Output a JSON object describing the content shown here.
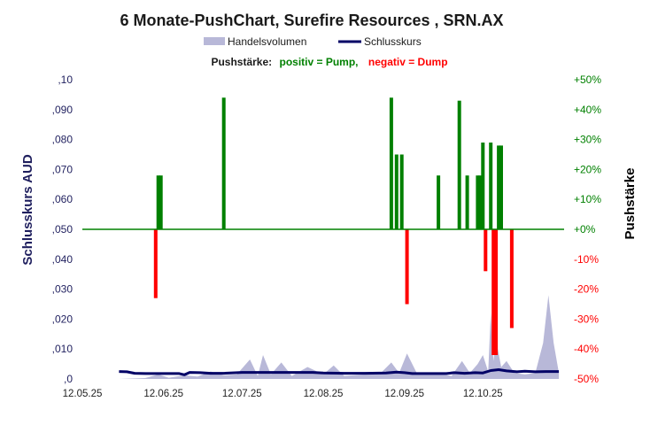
{
  "chart_data": {
    "type": "bar",
    "title": "6 Monate-PushChart,  Surefire Resources , SRN.AX",
    "subtitle": {
      "prefix": "Pushstärke:",
      "positive": "positiv = Pump,",
      "negative": "negativ = Dump"
    },
    "legend": [
      {
        "name": "Handelsvolumen",
        "kind": "area"
      },
      {
        "name": "Schlusskurs",
        "kind": "line"
      }
    ],
    "legend_placement": "top-center",
    "ylabel_left": "Schlusskurs AUD",
    "ylabel_right": "Pushstärke",
    "ylim_left": [
      0,
      0.1
    ],
    "ylim_right": [
      -50,
      50
    ],
    "x_range": [
      "2025-05-12",
      "2025-11-12"
    ],
    "left_ticks": [
      ",0",
      ",010",
      ",020",
      ",030",
      ",040",
      ",050",
      ",060",
      ",070",
      ",080",
      ",090",
      ",10"
    ],
    "left_tick_values": [
      0,
      0.01,
      0.02,
      0.03,
      0.04,
      0.05,
      0.06,
      0.07,
      0.08,
      0.09,
      0.1
    ],
    "right_ticks": [
      "-50%",
      "-40%",
      "-30%",
      "-20%",
      "-10%",
      "+0%",
      "+10%",
      "+20%",
      "+30%",
      "+40%",
      "+50%"
    ],
    "right_tick_values": [
      -50,
      -40,
      -30,
      -20,
      -10,
      0,
      10,
      20,
      30,
      40,
      50
    ],
    "x_ticks": [
      "12.05.25",
      "12.06.25",
      "12.07.25",
      "12.08.25",
      "12.09.25",
      "12.10.25"
    ],
    "x_tick_dates": [
      "2025-05-12",
      "2025-06-12",
      "2025-07-12",
      "2025-08-12",
      "2025-09-12",
      "2025-10-12"
    ],
    "grid": false,
    "colors": {
      "pump": "#008000",
      "dump": "#ff0000",
      "price": "#000066",
      "volume": "#b8b8d8",
      "zero_line": "#008000",
      "left_axis": "#1f1f5e",
      "right_axis_title": "#000000"
    },
    "push_series": {
      "name": "Pushstärke",
      "points": [
        {
          "date": "2025-06-09",
          "value": -23
        },
        {
          "date": "2025-06-10",
          "value": 18
        },
        {
          "date": "2025-06-11",
          "value": 18
        },
        {
          "date": "2025-07-05",
          "value": 44
        },
        {
          "date": "2025-09-07",
          "value": 44
        },
        {
          "date": "2025-09-09",
          "value": 25
        },
        {
          "date": "2025-09-11",
          "value": 25
        },
        {
          "date": "2025-09-13",
          "value": -25
        },
        {
          "date": "2025-09-25",
          "value": 18
        },
        {
          "date": "2025-10-03",
          "value": 43
        },
        {
          "date": "2025-10-06",
          "value": 18
        },
        {
          "date": "2025-10-10",
          "value": 18
        },
        {
          "date": "2025-10-11",
          "value": 18
        },
        {
          "date": "2025-10-12",
          "value": 29
        },
        {
          "date": "2025-10-13",
          "value": -14
        },
        {
          "date": "2025-10-15",
          "value": 29
        },
        {
          "date": "2025-10-16",
          "value": -42
        },
        {
          "date": "2025-10-17",
          "value": -42
        },
        {
          "date": "2025-10-18",
          "value": 28
        },
        {
          "date": "2025-10-19",
          "value": 28
        },
        {
          "date": "2025-10-23",
          "value": -33
        }
      ]
    },
    "price_series": {
      "name": "Schlusskurs",
      "points": [
        {
          "date": "2025-05-26",
          "value": 0.0025
        },
        {
          "date": "2025-05-29",
          "value": 0.0024
        },
        {
          "date": "2025-06-01",
          "value": 0.0019
        },
        {
          "date": "2025-06-05",
          "value": 0.0018
        },
        {
          "date": "2025-06-12",
          "value": 0.0018
        },
        {
          "date": "2025-06-18",
          "value": 0.0018
        },
        {
          "date": "2025-06-20",
          "value": 0.0014
        },
        {
          "date": "2025-06-22",
          "value": 0.0022
        },
        {
          "date": "2025-06-26",
          "value": 0.0021
        },
        {
          "date": "2025-06-30",
          "value": 0.0019
        },
        {
          "date": "2025-07-05",
          "value": 0.0019
        },
        {
          "date": "2025-07-12",
          "value": 0.0022
        },
        {
          "date": "2025-07-20",
          "value": 0.0022
        },
        {
          "date": "2025-08-01",
          "value": 0.0022
        },
        {
          "date": "2025-08-08",
          "value": 0.0022
        },
        {
          "date": "2025-08-12",
          "value": 0.002
        },
        {
          "date": "2025-08-20",
          "value": 0.0019
        },
        {
          "date": "2025-08-28",
          "value": 0.0019
        },
        {
          "date": "2025-09-05",
          "value": 0.002
        },
        {
          "date": "2025-09-09",
          "value": 0.0023
        },
        {
          "date": "2025-09-12",
          "value": 0.0021
        },
        {
          "date": "2025-09-15",
          "value": 0.0018
        },
        {
          "date": "2025-09-22",
          "value": 0.0018
        },
        {
          "date": "2025-09-28",
          "value": 0.0018
        },
        {
          "date": "2025-10-01",
          "value": 0.0021
        },
        {
          "date": "2025-10-05",
          "value": 0.0019
        },
        {
          "date": "2025-10-09",
          "value": 0.0021
        },
        {
          "date": "2025-10-12",
          "value": 0.002
        },
        {
          "date": "2025-10-15",
          "value": 0.0028
        },
        {
          "date": "2025-10-18",
          "value": 0.0031
        },
        {
          "date": "2025-10-21",
          "value": 0.0027
        },
        {
          "date": "2025-10-25",
          "value": 0.0024
        },
        {
          "date": "2025-10-28",
          "value": 0.0026
        },
        {
          "date": "2025-11-01",
          "value": 0.0024
        },
        {
          "date": "2025-11-05",
          "value": 0.0025
        },
        {
          "date": "2025-11-10",
          "value": 0.0025
        }
      ]
    },
    "volume_series": {
      "name": "Handelsvolumen",
      "points": [
        {
          "date": "2025-05-26",
          "value": 0
        },
        {
          "date": "2025-06-05",
          "value": 0.0003
        },
        {
          "date": "2025-06-10",
          "value": 0.0015
        },
        {
          "date": "2025-06-14",
          "value": 0.0004
        },
        {
          "date": "2025-06-20",
          "value": 0.0012
        },
        {
          "date": "2025-06-25",
          "value": 0.0008
        },
        {
          "date": "2025-06-30",
          "value": 0.0025
        },
        {
          "date": "2025-07-05",
          "value": 0.0012
        },
        {
          "date": "2025-07-10",
          "value": 0.0015
        },
        {
          "date": "2025-07-15",
          "value": 0.0065
        },
        {
          "date": "2025-07-18",
          "value": 0.001
        },
        {
          "date": "2025-07-20",
          "value": 0.008
        },
        {
          "date": "2025-07-23",
          "value": 0.0015
        },
        {
          "date": "2025-07-27",
          "value": 0.0055
        },
        {
          "date": "2025-07-31",
          "value": 0.001
        },
        {
          "date": "2025-08-06",
          "value": 0.004
        },
        {
          "date": "2025-08-12",
          "value": 0.0015
        },
        {
          "date": "2025-08-16",
          "value": 0.0045
        },
        {
          "date": "2025-08-20",
          "value": 0.001
        },
        {
          "date": "2025-08-28",
          "value": 0.0015
        },
        {
          "date": "2025-09-03",
          "value": 0.002
        },
        {
          "date": "2025-09-07",
          "value": 0.0055
        },
        {
          "date": "2025-09-10",
          "value": 0.002
        },
        {
          "date": "2025-09-13",
          "value": 0.0085
        },
        {
          "date": "2025-09-17",
          "value": 0.0015
        },
        {
          "date": "2025-09-24",
          "value": 0.002
        },
        {
          "date": "2025-09-30",
          "value": 0.001
        },
        {
          "date": "2025-10-04",
          "value": 0.006
        },
        {
          "date": "2025-10-07",
          "value": 0.002
        },
        {
          "date": "2025-10-10",
          "value": 0.005
        },
        {
          "date": "2025-10-12",
          "value": 0.008
        },
        {
          "date": "2025-10-14",
          "value": 0.0025
        },
        {
          "date": "2025-10-15",
          "value": 0.022
        },
        {
          "date": "2025-10-16",
          "value": 0.006
        },
        {
          "date": "2025-10-17",
          "value": 0.013
        },
        {
          "date": "2025-10-19",
          "value": 0.004
        },
        {
          "date": "2025-10-21",
          "value": 0.006
        },
        {
          "date": "2025-10-24",
          "value": 0.002
        },
        {
          "date": "2025-10-28",
          "value": 0.0015
        },
        {
          "date": "2025-11-01",
          "value": 0.002
        },
        {
          "date": "2025-11-04",
          "value": 0.012
        },
        {
          "date": "2025-11-06",
          "value": 0.028
        },
        {
          "date": "2025-11-08",
          "value": 0.012
        },
        {
          "date": "2025-11-10",
          "value": 0.002
        }
      ]
    }
  }
}
